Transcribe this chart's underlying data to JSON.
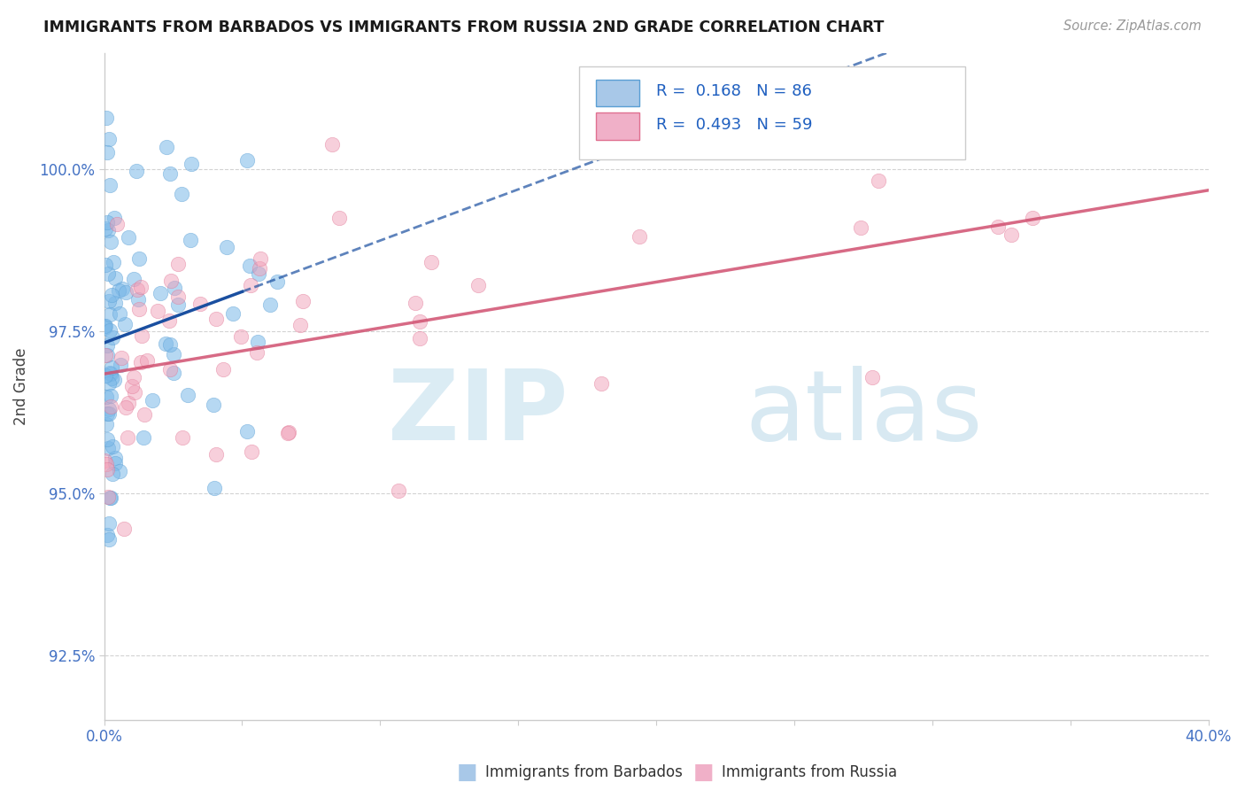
{
  "title": "IMMIGRANTS FROM BARBADOS VS IMMIGRANTS FROM RUSSIA 2ND GRADE CORRELATION CHART",
  "source": "Source: ZipAtlas.com",
  "ylabel": "2nd Grade",
  "xlim": [
    0.0,
    40.0
  ],
  "ylim": [
    91.5,
    101.8
  ],
  "yticks": [
    92.5,
    95.0,
    97.5,
    100.0
  ],
  "ytick_labels": [
    "92.5%",
    "95.0%",
    "97.5%",
    "100.0%"
  ],
  "xtick_positions": [
    0.0,
    5.0,
    10.0,
    15.0,
    20.0,
    25.0,
    30.0,
    35.0,
    40.0
  ],
  "barbados_color": "#7bb8e8",
  "barbados_edge": "#5a9fd4",
  "russia_color": "#f0a0b8",
  "russia_edge": "#e07090",
  "barbados_line_color": "#1a4fa0",
  "russia_line_color": "#d05070",
  "legend_box_color": "#e8f0f8",
  "legend_border_color": "#c0c8d8",
  "watermark_zip_color": "#cce4f0",
  "watermark_atlas_color": "#b8d8e8",
  "background_color": "#ffffff",
  "grid_color": "#c8c8c8",
  "R_barbados": 0.168,
  "N_barbados": 86,
  "R_russia": 0.493,
  "N_russia": 59,
  "seed": 123
}
